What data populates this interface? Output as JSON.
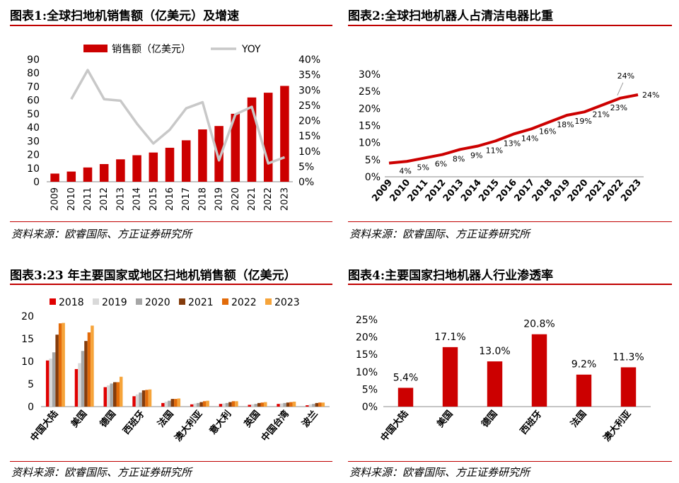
{
  "colors": {
    "red": "#cc0000",
    "gray": "#c8c8c8",
    "rule": "#c00000",
    "c2018": "#e00000",
    "c2019": "#d9d9d9",
    "c2020": "#a6a6a6",
    "c2021": "#843c0c",
    "c2022": "#e26b0a",
    "c2023": "#f6a43a"
  },
  "panels": {
    "p1": {
      "title": "图表1:全球扫地机销售额（亿美元）及增速",
      "source": "资料来源：欧睿国际、方正证券研究所"
    },
    "p2": {
      "title": "图表2:全球扫地机器人占清洁电器比重",
      "source": "资料来源：欧睿国际、方正证券研究所"
    },
    "p3": {
      "title": "图表3:23 年主要国家或地区扫地机销售额（亿美元）",
      "source": "资料来源：欧睿国际、方正证券研究所"
    },
    "p4": {
      "title": "图表4:主要国家扫地机器人行业渗透率",
      "source": "资料来源：欧睿国际、方正证券研究所"
    }
  },
  "chart_data": [
    {
      "type": "bar",
      "categories": [
        "2009",
        "2010",
        "2011",
        "2012",
        "2013",
        "2014",
        "2015",
        "2016",
        "2017",
        "2018",
        "2019",
        "2020",
        "2021",
        "2022",
        "2023"
      ],
      "series": [
        {
          "name": "销售额（亿美元）",
          "values": [
            6,
            7.5,
            10.5,
            13,
            16.5,
            19.5,
            21.5,
            25,
            30.5,
            38.5,
            41,
            50,
            62,
            65.5,
            70.5
          ]
        },
        {
          "name": "YOY",
          "type": "line",
          "axis": "right",
          "values": [
            null,
            0.27,
            0.365,
            0.27,
            0.265,
            0.19,
            0.125,
            0.17,
            0.24,
            0.26,
            0.07,
            0.22,
            0.245,
            0.06,
            0.08
          ]
        }
      ],
      "ylim": [
        0,
        90
      ],
      "y_ticks": [
        0,
        10,
        20,
        30,
        40,
        50,
        60,
        70,
        80,
        90
      ],
      "y2lim": [
        0,
        0.4
      ],
      "y2_ticks": [
        "0%",
        "5%",
        "10%",
        "15%",
        "20%",
        "25%",
        "30%",
        "35%",
        "40%"
      ],
      "legend": "top"
    },
    {
      "type": "line",
      "categories": [
        "2009",
        "2010",
        "2011",
        "2012",
        "2013",
        "2014",
        "2015",
        "2016",
        "2017",
        "2018",
        "2019",
        "2020",
        "2021",
        "2022",
        "2023"
      ],
      "series": [
        {
          "values": [
            0.04,
            0.045,
            0.055,
            0.065,
            0.08,
            0.09,
            0.105,
            0.125,
            0.14,
            0.16,
            0.18,
            0.19,
            0.21,
            0.23,
            0.24
          ]
        }
      ],
      "point_labels": [
        "",
        "4%",
        "5%",
        "6%",
        "8%",
        "9%",
        "11%",
        "13%",
        "14%",
        "16%",
        "18%",
        "19%",
        "21%",
        "23%",
        "24%"
      ],
      "callout_label": "24%",
      "ylim": [
        0,
        0.3
      ],
      "y_ticks": [
        "0%",
        "5%",
        "10%",
        "15%",
        "20%",
        "25%",
        "30%"
      ]
    },
    {
      "type": "bar",
      "categories": [
        "中国大陆",
        "美国",
        "德国",
        "西班牙",
        "法国",
        "澳大利亚",
        "意大利",
        "英国",
        "中国台湾",
        "波兰"
      ],
      "series": [
        {
          "name": "2018",
          "values": [
            10.2,
            8.3,
            4.3,
            2.3,
            0.8,
            0.5,
            0.6,
            0.4,
            0.6,
            0.3
          ]
        },
        {
          "name": "2019",
          "values": [
            10.6,
            9.6,
            4.7,
            2.7,
            1.1,
            0.7,
            0.7,
            0.5,
            0.7,
            0.5
          ]
        },
        {
          "name": "2020",
          "values": [
            12.0,
            12.3,
            5.1,
            3.1,
            1.3,
            0.8,
            0.8,
            0.6,
            0.8,
            0.6
          ]
        },
        {
          "name": "2021",
          "values": [
            15.9,
            14.5,
            5.4,
            3.6,
            1.7,
            1.0,
            1.0,
            0.8,
            0.9,
            0.8
          ]
        },
        {
          "name": "2022",
          "values": [
            18.4,
            16.4,
            5.4,
            3.7,
            1.7,
            1.2,
            1.2,
            0.9,
            1.0,
            0.9
          ]
        },
        {
          "name": "2023",
          "values": [
            18.5,
            17.9,
            6.6,
            3.8,
            1.8,
            1.3,
            1.2,
            1.0,
            1.1,
            0.9
          ]
        }
      ],
      "ylim": [
        0,
        20
      ],
      "y_ticks": [
        0,
        5,
        10,
        15,
        20
      ],
      "legend": "top"
    },
    {
      "type": "bar",
      "categories": [
        "中国大陆",
        "美国",
        "德国",
        "西班牙",
        "法国",
        "澳大利亚"
      ],
      "values": [
        0.054,
        0.171,
        0.13,
        0.208,
        0.092,
        0.113
      ],
      "value_labels": [
        "5.4%",
        "17.1%",
        "13.0%",
        "20.8%",
        "9.2%",
        "11.3%"
      ],
      "ylim": [
        0,
        0.25
      ],
      "y_ticks": [
        "0%",
        "5%",
        "10%",
        "15%",
        "20%",
        "25%"
      ]
    }
  ]
}
